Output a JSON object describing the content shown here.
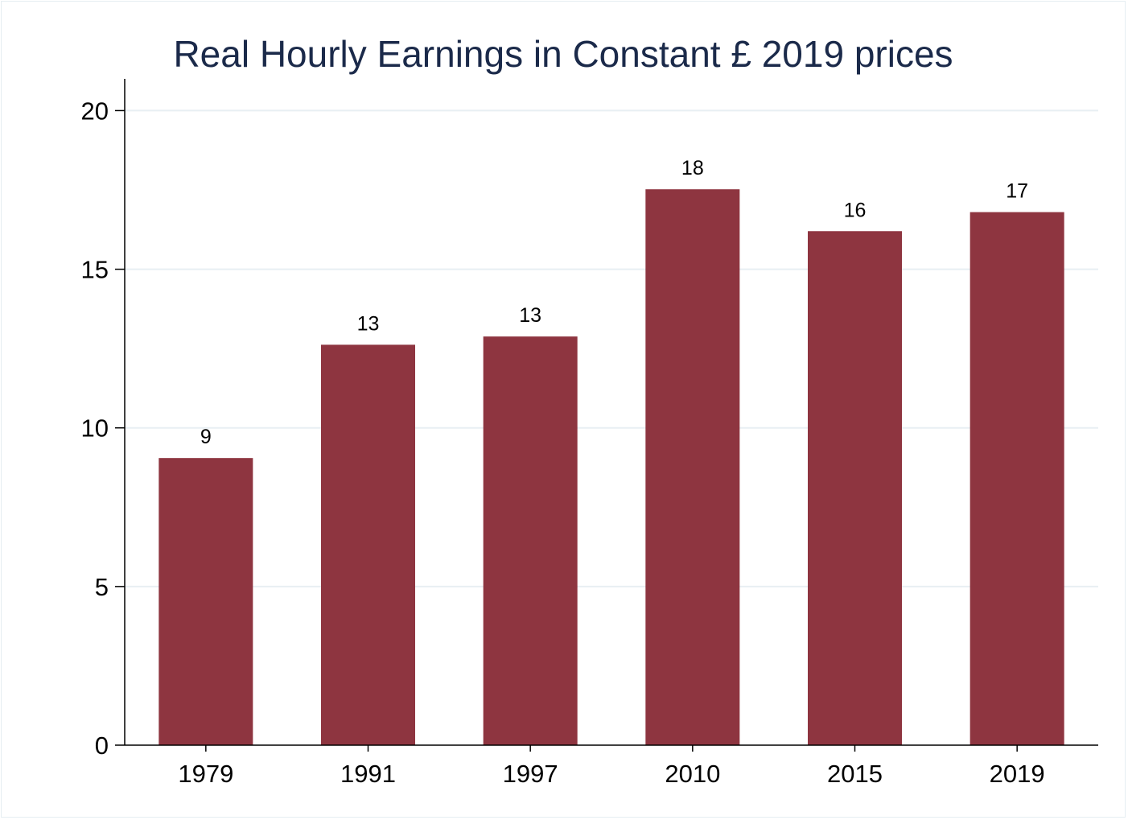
{
  "chart_data": {
    "type": "bar",
    "title": "Real Hourly Earnings in Constant £ 2019 prices",
    "xlabel": "",
    "ylabel": "",
    "categories": [
      "1979",
      "1991",
      "1997",
      "2010",
      "2015",
      "2019"
    ],
    "values": [
      9.05,
      12.62,
      12.88,
      17.52,
      16.2,
      16.8
    ],
    "data_labels": [
      "9",
      "13",
      "13",
      "18",
      "16",
      "17"
    ],
    "ylim": [
      0,
      21
    ],
    "yticks": [
      0,
      5,
      10,
      15,
      20
    ],
    "grid": true,
    "legend": "none",
    "bar_color": "#8e3540",
    "grid_color": "#e8eff3"
  }
}
